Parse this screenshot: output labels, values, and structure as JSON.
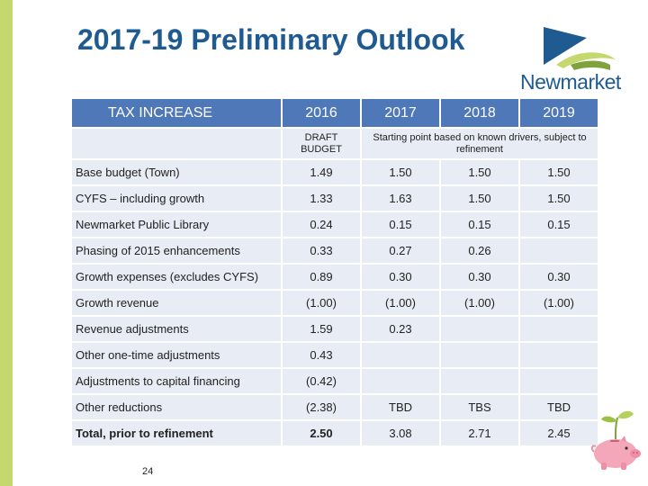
{
  "title": "2017-19 Preliminary Outlook",
  "logo_text": "Newmarket",
  "header": {
    "label": "TAX INCREASE",
    "years": [
      "2016",
      "2017",
      "2018",
      "2019"
    ]
  },
  "subheader": {
    "col1": "DRAFT BUDGET",
    "rest": "Starting point based on known drivers, subject to refinement"
  },
  "rows": [
    {
      "label": "Base budget (Town)",
      "values": [
        "1.49",
        "1.50",
        "1.50",
        "1.50"
      ]
    },
    {
      "label": "CYFS – including growth",
      "values": [
        "1.33",
        "1.63",
        "1.50",
        "1.50"
      ]
    },
    {
      "label": "Newmarket Public Library",
      "values": [
        "0.24",
        "0.15",
        "0.15",
        "0.15"
      ]
    },
    {
      "label": "Phasing of 2015 enhancements",
      "values": [
        "0.33",
        "0.27",
        "0.26",
        ""
      ]
    },
    {
      "label": "Growth expenses (excludes CYFS)",
      "values": [
        "0.89",
        "0.30",
        "0.30",
        "0.30"
      ]
    },
    {
      "label": "Growth revenue",
      "values": [
        "(1.00)",
        "(1.00)",
        "(1.00)",
        "(1.00)"
      ]
    },
    {
      "label": "Revenue adjustments",
      "values": [
        "1.59",
        "0.23",
        "",
        ""
      ]
    },
    {
      "label": "Other one-time adjustments",
      "values": [
        "0.43",
        "",
        "",
        ""
      ]
    },
    {
      "label": "Adjustments to capital financing",
      "values": [
        "(0.42)",
        "",
        "",
        ""
      ]
    },
    {
      "label": "Other reductions",
      "values": [
        "(2.38)",
        "TBD",
        "TBS",
        "TBD"
      ]
    },
    {
      "label": "Total, prior to refinement",
      "values": [
        "2.50",
        "3.08",
        "2.71",
        "2.45"
      ]
    }
  ],
  "page_number": "24",
  "colors": {
    "header_bg": "#4f78b8",
    "cell_bg": "#e8ecf4",
    "title": "#1f5b91",
    "band": "#c5d86d"
  }
}
